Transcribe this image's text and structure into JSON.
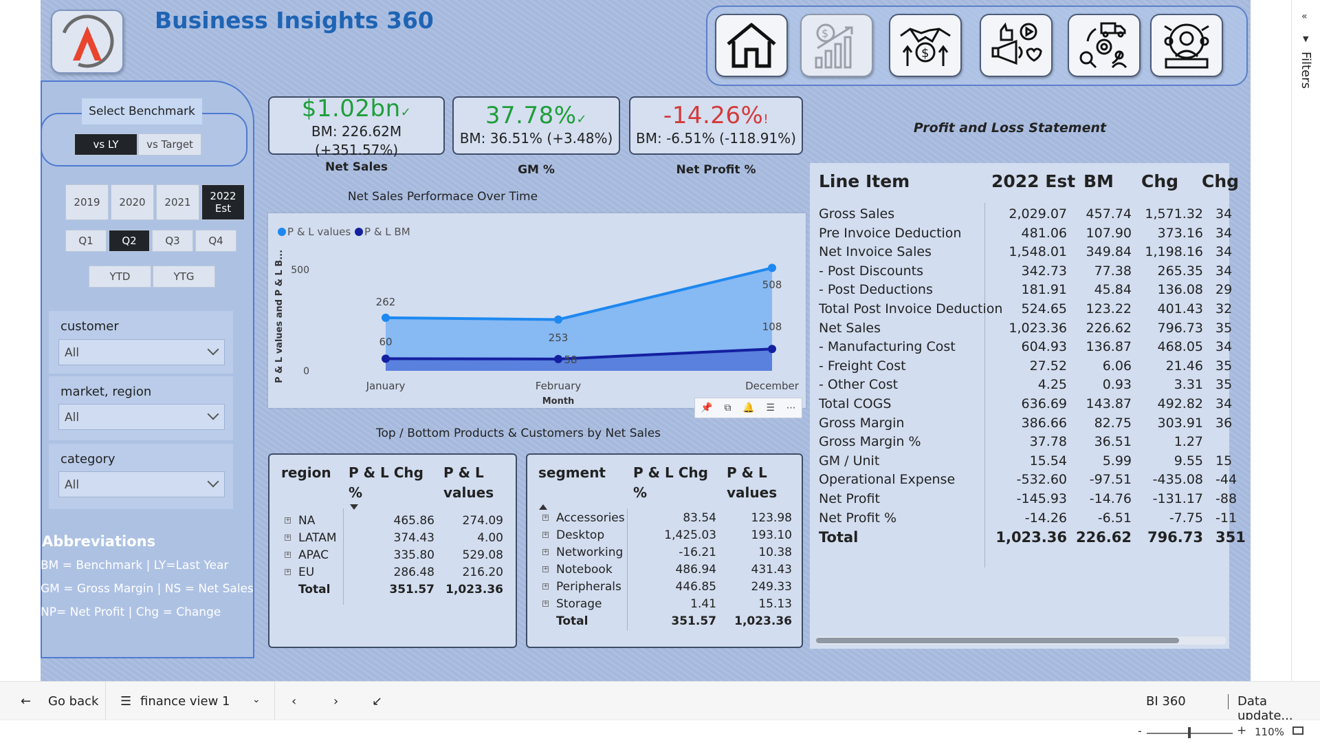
{
  "header": {
    "title": "Business Insights 360"
  },
  "nav": {
    "icons": [
      "home-icon",
      "finance-chart-icon",
      "deal-money-icon",
      "marketing-megaphone-icon",
      "supply-chain-icon",
      "executive-globe-icon"
    ]
  },
  "benchmark": {
    "label": "Select Benchmark",
    "options": [
      "vs LY",
      "vs Target"
    ],
    "selected": "vs LY"
  },
  "years": {
    "options": [
      "2019",
      "2020",
      "2021",
      "2022 Est"
    ],
    "selected": "2022 Est"
  },
  "quarters": {
    "options": [
      "Q1",
      "Q2",
      "Q3",
      "Q4"
    ],
    "selected": "Q2"
  },
  "periods": {
    "options": [
      "YTD",
      "YTG"
    ]
  },
  "filters": [
    {
      "label": "customer",
      "value": "All"
    },
    {
      "label": "market, region",
      "value": "All"
    },
    {
      "label": "category",
      "value": "All"
    }
  ],
  "abbreviations": {
    "title": "Abbreviations",
    "lines": [
      "BM = Benchmark | LY=Last Year",
      "GM = Gross Margin | NS = Net Sales",
      "NP= Net Profit | Chg = Change"
    ]
  },
  "kpis": [
    {
      "value": "$1.02bn",
      "mark": "✓",
      "bm_line1": "BM: 226.62M",
      "bm_line2": "(+351.57%)",
      "caption": "Net Sales",
      "color": "#1f9e3a"
    },
    {
      "value": "37.78%",
      "mark": "✓",
      "bm_line1": "BM: 36.51% (+3.48%)",
      "bm_line2": "",
      "caption": "GM %",
      "color": "#1f9e3a"
    },
    {
      "value": "-14.26%",
      "mark": "!",
      "bm_line1": "BM: -6.51% (-118.91%)",
      "bm_line2": "",
      "caption": "Net Profit %",
      "color": "#d33a3a"
    }
  ],
  "chart_data": {
    "type": "area",
    "title": "Net Sales Performace Over Time",
    "xlabel": "Month",
    "ylabel": "P & L values and P & L B...",
    "categories": [
      "January",
      "February",
      "December"
    ],
    "series": [
      {
        "name": "P & L values",
        "values": [
          262,
          253,
          508
        ],
        "labels": [
          "262",
          "253",
          "508"
        ],
        "color": "#1e88f0"
      },
      {
        "name": "P & L BM",
        "values": [
          60,
          58,
          108
        ],
        "labels": [
          "60",
          "58",
          "108"
        ],
        "color": "#1420a0"
      }
    ],
    "ylim": [
      0,
      600
    ],
    "yticks": [
      0,
      500
    ],
    "legend": "top-left"
  },
  "chart_tools": [
    "pin-icon",
    "copy-icon",
    "alert-icon",
    "filter-icon",
    "more-icon"
  ],
  "top_bottom_title": "Top / Bottom Products & Customers by Net Sales",
  "region_table": {
    "headers": [
      "region",
      "P & L Chg %",
      "P & L values"
    ],
    "rows": [
      [
        "NA",
        "465.86",
        "274.09"
      ],
      [
        "LATAM",
        "374.43",
        "4.00"
      ],
      [
        "APAC",
        "335.80",
        "529.08"
      ],
      [
        "EU",
        "286.48",
        "216.20"
      ]
    ],
    "total": [
      "Total",
      "351.57",
      "1,023.36"
    ]
  },
  "segment_table": {
    "headers": [
      "segment",
      "P & L Chg %",
      "P & L values"
    ],
    "rows": [
      [
        "Accessories",
        "83.54",
        "123.98"
      ],
      [
        "Desktop",
        "1,425.03",
        "193.10"
      ],
      [
        "Networking",
        "-16.21",
        "10.38"
      ],
      [
        "Notebook",
        "486.94",
        "431.43"
      ],
      [
        "Peripherals",
        "446.85",
        "249.33"
      ],
      [
        "Storage",
        "1.41",
        "15.13"
      ]
    ],
    "total": [
      "Total",
      "351.57",
      "1,023.36"
    ]
  },
  "pl": {
    "title": "Profit and Loss Statement",
    "headers": [
      "Line Item",
      "2022 Est",
      "BM",
      "Chg",
      "Chg"
    ],
    "rows": [
      [
        "Gross Sales",
        "2,029.07",
        "457.74",
        "1,571.32",
        "34"
      ],
      [
        "Pre Invoice Deduction",
        "481.06",
        "107.90",
        "373.16",
        "34"
      ],
      [
        "Net Invoice Sales",
        "1,548.01",
        "349.84",
        "1,198.16",
        "34"
      ],
      [
        "- Post Discounts",
        "342.73",
        "77.38",
        "265.35",
        "34"
      ],
      [
        "- Post Deductions",
        "181.91",
        "45.84",
        "136.08",
        "29"
      ],
      [
        "Total Post Invoice Deduction",
        "524.65",
        "123.22",
        "401.43",
        "32"
      ],
      [
        "Net Sales",
        "1,023.36",
        "226.62",
        "796.73",
        "35"
      ],
      [
        "- Manufacturing Cost",
        "604.93",
        "136.87",
        "468.05",
        "34"
      ],
      [
        "- Freight Cost",
        "27.52",
        "6.06",
        "21.46",
        "35"
      ],
      [
        "- Other Cost",
        "4.25",
        "0.93",
        "3.31",
        "35"
      ],
      [
        "Total COGS",
        "636.69",
        "143.87",
        "492.82",
        "34"
      ],
      [
        "Gross Margin",
        "386.66",
        "82.75",
        "303.91",
        "36"
      ],
      [
        "Gross Margin %",
        "37.78",
        "36.51",
        "1.27",
        ""
      ],
      [
        "GM / Unit",
        "15.54",
        "5.99",
        "9.55",
        "15"
      ],
      [
        "Operational Expense",
        "-532.60",
        "-97.51",
        "-435.08",
        "-44"
      ],
      [
        "Net Profit",
        "-145.93",
        "-14.76",
        "-131.17",
        "-88"
      ],
      [
        "Net Profit %",
        "-14.26",
        "-6.51",
        "-7.75",
        "-11"
      ]
    ],
    "total": [
      "Total",
      "1,023.36",
      "226.62",
      "796.73",
      "351"
    ]
  },
  "filters_pane": {
    "label": "Filters"
  },
  "bottombar": {
    "go_back": "Go back",
    "page": "finance view 1",
    "report": "BI 360",
    "data_update": "Data update..."
  },
  "statusbar": {
    "zoom": "110%"
  }
}
